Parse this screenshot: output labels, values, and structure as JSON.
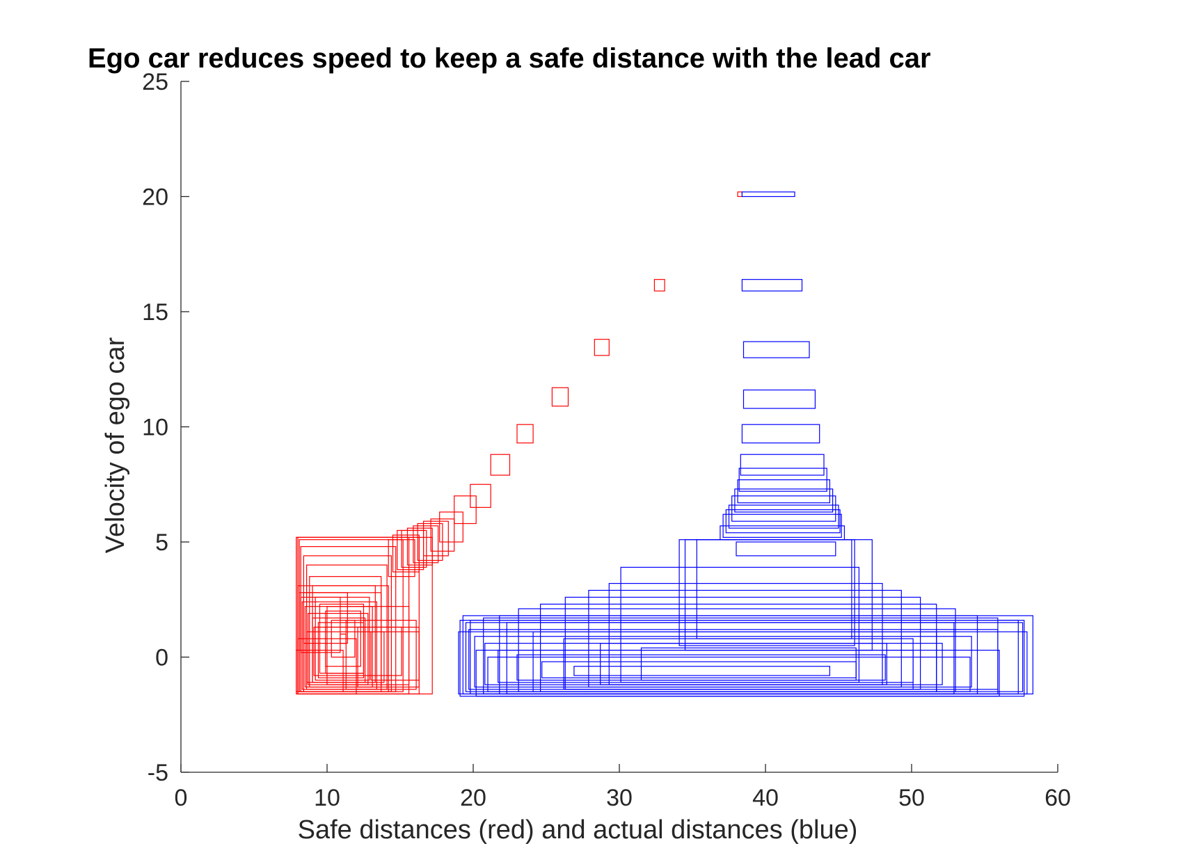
{
  "chart_data": {
    "type": "scatter",
    "title": "Ego car reduces speed to keep a safe distance with the lead car",
    "xlabel": "Safe distances (red) and actual distances (blue)",
    "ylabel": "Velocity of ego car",
    "xlim": [
      0,
      60
    ],
    "ylim": [
      -5,
      25
    ],
    "xticks": [
      0,
      10,
      20,
      30,
      40,
      50,
      60
    ],
    "yticks": [
      -5,
      0,
      5,
      10,
      15,
      20,
      25
    ],
    "xtick_labels": [
      "0",
      "10",
      "20",
      "30",
      "40",
      "50",
      "60"
    ],
    "ytick_labels": [
      "-5",
      "0",
      "5",
      "10",
      "15",
      "20",
      "25"
    ],
    "grid": false,
    "marker": "rectangle outline",
    "series": [
      {
        "name": "Safe distances (red)",
        "color": "#ff0000",
        "rects": [
          {
            "x": 38.1,
            "y": 20.0,
            "w": 0.3,
            "h": 0.2
          },
          {
            "x": 32.4,
            "y": 15.9,
            "w": 0.7,
            "h": 0.5
          },
          {
            "x": 28.3,
            "y": 13.1,
            "w": 1.0,
            "h": 0.7
          },
          {
            "x": 25.4,
            "y": 10.9,
            "w": 1.1,
            "h": 0.8
          },
          {
            "x": 23.0,
            "y": 9.3,
            "w": 1.1,
            "h": 0.8
          },
          {
            "x": 21.2,
            "y": 7.9,
            "w": 1.3,
            "h": 0.9
          },
          {
            "x": 19.8,
            "y": 6.5,
            "w": 1.4,
            "h": 1.0
          },
          {
            "x": 18.7,
            "y": 5.8,
            "w": 1.5,
            "h": 1.2
          },
          {
            "x": 17.7,
            "y": 5.0,
            "w": 1.6,
            "h": 1.3
          },
          {
            "x": 17.1,
            "y": 4.6,
            "w": 1.6,
            "h": 1.4
          },
          {
            "x": 16.6,
            "y": 4.4,
            "w": 1.7,
            "h": 1.5
          },
          {
            "x": 16.2,
            "y": 4.2,
            "w": 1.7,
            "h": 1.6
          },
          {
            "x": 15.9,
            "y": 4.1,
            "w": 1.7,
            "h": 1.6
          },
          {
            "x": 15.5,
            "y": 4.0,
            "w": 1.7,
            "h": 1.6
          },
          {
            "x": 15.1,
            "y": 3.9,
            "w": 1.7,
            "h": 1.6
          },
          {
            "x": 14.8,
            "y": 3.8,
            "w": 1.8,
            "h": 1.7
          },
          {
            "x": 14.5,
            "y": 3.7,
            "w": 1.8,
            "h": 1.6
          },
          {
            "x": 14.2,
            "y": 3.5,
            "w": 1.8,
            "h": 1.6
          },
          {
            "x": 10.9,
            "y": 0.6,
            "w": 0.4,
            "h": 0.4
          },
          {
            "x": 10.3,
            "y": 0.0,
            "w": 1.6,
            "h": 1.6
          },
          {
            "x": 9.9,
            "y": -0.4,
            "w": 2.4,
            "h": 2.4
          },
          {
            "x": 9.5,
            "y": -0.7,
            "w": 3.0,
            "h": 3.0
          },
          {
            "x": 9.2,
            "y": -1.0,
            "w": 3.7,
            "h": 3.6
          },
          {
            "x": 9.0,
            "y": -1.1,
            "w": 4.3,
            "h": 4.2
          },
          {
            "x": 8.8,
            "y": -1.3,
            "w": 4.9,
            "h": 4.8
          },
          {
            "x": 8.6,
            "y": -1.4,
            "w": 5.5,
            "h": 5.4
          },
          {
            "x": 8.4,
            "y": -1.5,
            "w": 6.0,
            "h": 5.9
          },
          {
            "x": 8.2,
            "y": -1.5,
            "w": 6.5,
            "h": 6.3
          },
          {
            "x": 8.1,
            "y": -1.5,
            "w": 7.1,
            "h": 6.6
          },
          {
            "x": 8.0,
            "y": -1.6,
            "w": 7.6,
            "h": 6.8
          },
          {
            "x": 7.9,
            "y": -1.6,
            "w": 8.4,
            "h": 6.8
          },
          {
            "x": 7.9,
            "y": -1.6,
            "w": 9.3,
            "h": 6.8
          },
          {
            "x": 8.0,
            "y": -1.5,
            "w": 6.2,
            "h": 4.6
          },
          {
            "x": 8.1,
            "y": -1.5,
            "w": 5.6,
            "h": 4.3
          },
          {
            "x": 8.3,
            "y": -1.4,
            "w": 5.1,
            "h": 3.8
          },
          {
            "x": 8.5,
            "y": -1.3,
            "w": 4.6,
            "h": 3.5
          },
          {
            "x": 8.7,
            "y": -1.2,
            "w": 4.1,
            "h": 3.1
          },
          {
            "x": 9.0,
            "y": -1.1,
            "w": 3.6,
            "h": 2.8
          },
          {
            "x": 9.4,
            "y": -0.9,
            "w": 3.1,
            "h": 2.4
          },
          {
            "x": 9.9,
            "y": -0.7,
            "w": 2.6,
            "h": 2.0
          },
          {
            "x": 8.0,
            "y": -1.6,
            "w": 4.0,
            "h": 2.4
          },
          {
            "x": 7.9,
            "y": -1.5,
            "w": 3.2,
            "h": 1.8
          },
          {
            "x": 8.6,
            "y": -1.1,
            "w": 5.3,
            "h": 2.2
          },
          {
            "x": 9.1,
            "y": -0.8,
            "w": 6.0,
            "h": 2.1
          },
          {
            "x": 10.0,
            "y": -1.2,
            "w": 5.6,
            "h": 3.4
          },
          {
            "x": 11.3,
            "y": -1.4,
            "w": 4.8,
            "h": 3.0
          },
          {
            "x": 12.1,
            "y": -1.3,
            "w": 4.2,
            "h": 2.6
          },
          {
            "x": 13.0,
            "y": -1.0,
            "w": 3.3,
            "h": 2.1
          },
          {
            "x": 8.2,
            "y": 0.2,
            "w": 2.7,
            "h": 2.4
          },
          {
            "x": 8.4,
            "y": 0.6,
            "w": 3.0,
            "h": 2.2
          }
        ]
      },
      {
        "name": "Actual distances (blue)",
        "color": "#0000ff",
        "rects": [
          {
            "x": 38.4,
            "y": 20.0,
            "w": 3.6,
            "h": 0.2
          },
          {
            "x": 38.4,
            "y": 15.9,
            "w": 4.1,
            "h": 0.5
          },
          {
            "x": 38.5,
            "y": 13.0,
            "w": 4.5,
            "h": 0.7
          },
          {
            "x": 38.5,
            "y": 10.8,
            "w": 4.9,
            "h": 0.8
          },
          {
            "x": 38.4,
            "y": 9.3,
            "w": 5.3,
            "h": 0.8
          },
          {
            "x": 38.3,
            "y": 7.9,
            "w": 5.7,
            "h": 0.9
          },
          {
            "x": 38.2,
            "y": 7.2,
            "w": 6.0,
            "h": 1.0
          },
          {
            "x": 38.1,
            "y": 6.7,
            "w": 6.3,
            "h": 1.0
          },
          {
            "x": 37.9,
            "y": 6.3,
            "w": 6.7,
            "h": 1.0
          },
          {
            "x": 37.7,
            "y": 5.9,
            "w": 7.1,
            "h": 1.1
          },
          {
            "x": 37.5,
            "y": 5.6,
            "w": 7.5,
            "h": 1.0
          },
          {
            "x": 37.3,
            "y": 5.4,
            "w": 7.8,
            "h": 1.0
          },
          {
            "x": 37.1,
            "y": 5.2,
            "w": 8.1,
            "h": 1.0
          },
          {
            "x": 36.9,
            "y": 5.1,
            "w": 8.5,
            "h": 0.6
          },
          {
            "x": 38.0,
            "y": 4.4,
            "w": 6.8,
            "h": 0.6
          },
          {
            "x": 34.1,
            "y": 0.5,
            "w": 12.0,
            "h": 4.6
          },
          {
            "x": 34.5,
            "y": 0.3,
            "w": 12.8,
            "h": 4.8
          },
          {
            "x": 35.3,
            "y": 0.8,
            "w": 10.6,
            "h": 4.3
          },
          {
            "x": 30.1,
            "y": -1.1,
            "w": 16.3,
            "h": 5.0
          },
          {
            "x": 29.3,
            "y": -1.2,
            "w": 18.7,
            "h": 4.4
          },
          {
            "x": 27.9,
            "y": -1.3,
            "w": 21.4,
            "h": 4.2
          },
          {
            "x": 26.3,
            "y": -1.4,
            "w": 24.3,
            "h": 4.0
          },
          {
            "x": 24.6,
            "y": -1.5,
            "w": 27.1,
            "h": 3.8
          },
          {
            "x": 23.1,
            "y": -1.5,
            "w": 29.9,
            "h": 3.6
          },
          {
            "x": 21.8,
            "y": -1.6,
            "w": 32.7,
            "h": 3.4
          },
          {
            "x": 20.7,
            "y": -1.6,
            "w": 35.2,
            "h": 3.3
          },
          {
            "x": 19.8,
            "y": -1.6,
            "w": 37.5,
            "h": 3.2
          },
          {
            "x": 19.0,
            "y": -1.6,
            "w": 38.9,
            "h": 2.7
          },
          {
            "x": 19.1,
            "y": -1.7,
            "w": 38.6,
            "h": 3.3
          },
          {
            "x": 19.3,
            "y": -1.6,
            "w": 39.0,
            "h": 3.4
          },
          {
            "x": 19.5,
            "y": -1.5,
            "w": 38.1,
            "h": 3.0
          },
          {
            "x": 19.7,
            "y": -1.4,
            "w": 36.2,
            "h": 2.6
          },
          {
            "x": 20.1,
            "y": -1.3,
            "w": 34.0,
            "h": 2.2
          },
          {
            "x": 20.8,
            "y": -1.2,
            "w": 31.3,
            "h": 1.8
          },
          {
            "x": 21.7,
            "y": -1.1,
            "w": 28.4,
            "h": 1.4
          },
          {
            "x": 23.0,
            "y": -1.0,
            "w": 25.2,
            "h": 1.1
          },
          {
            "x": 24.7,
            "y": -0.9,
            "w": 21.5,
            "h": 0.7
          },
          {
            "x": 26.9,
            "y": -0.8,
            "w": 17.5,
            "h": 0.4
          },
          {
            "x": 22.3,
            "y": -1.6,
            "w": 30.6,
            "h": 3.1
          },
          {
            "x": 24.1,
            "y": -1.5,
            "w": 27.6,
            "h": 2.6
          },
          {
            "x": 26.2,
            "y": -1.4,
            "w": 23.9,
            "h": 2.2
          },
          {
            "x": 28.7,
            "y": -1.2,
            "w": 19.6,
            "h": 1.8
          },
          {
            "x": 31.5,
            "y": -1.0,
            "w": 14.7,
            "h": 1.4
          },
          {
            "x": 20.2,
            "y": -1.7,
            "w": 35.8,
            "h": 2.0
          },
          {
            "x": 21.0,
            "y": -1.5,
            "w": 33.0,
            "h": 1.5
          }
        ]
      }
    ]
  }
}
